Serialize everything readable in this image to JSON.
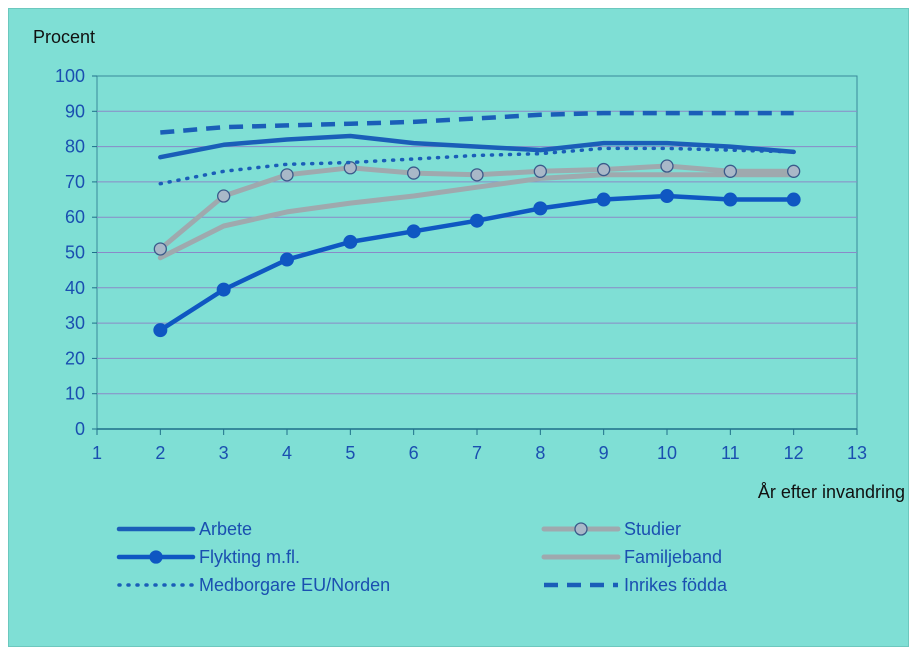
{
  "chart_data": {
    "type": "line",
    "ylabel": "Procent",
    "xlabel": "År efter invandring",
    "xlim": [
      1,
      13
    ],
    "ylim": [
      0,
      100
    ],
    "x_ticks": [
      "1",
      "2",
      "3",
      "4",
      "5",
      "6",
      "7",
      "8",
      "9",
      "10",
      "11",
      "12",
      "13"
    ],
    "y_ticks": [
      "0",
      "10",
      "20",
      "30",
      "40",
      "50",
      "60",
      "70",
      "80",
      "90",
      "100"
    ],
    "grid": "horizontal",
    "legend_placement": "bottom",
    "x": [
      2,
      3,
      4,
      5,
      6,
      7,
      8,
      9,
      10,
      11,
      12
    ],
    "series": [
      {
        "name": "Arbete",
        "color": "#1a5eb8",
        "style": "solid",
        "values": [
          77,
          80.5,
          82,
          83,
          81,
          80,
          79,
          81,
          81,
          80,
          78.5
        ]
      },
      {
        "name": "Studier",
        "color": "#9fa9ae",
        "style": "solid-markers",
        "values": [
          51,
          66,
          72,
          74,
          72.5,
          72,
          73,
          73.5,
          74.5,
          73,
          73
        ]
      },
      {
        "name": "Flykting m.fl.",
        "color": "#0f57c2",
        "style": "solid-markers",
        "values": [
          28,
          39.5,
          48,
          53,
          56,
          59,
          62.5,
          65,
          66,
          65,
          65
        ]
      },
      {
        "name": "Familjeband",
        "color": "#9fa9ae",
        "style": "solid",
        "values": [
          48.5,
          57.5,
          61.5,
          64,
          66,
          68.5,
          71,
          72,
          72,
          72,
          72
        ]
      },
      {
        "name": "Medborgare EU/Norden",
        "color": "#1a5eb8",
        "style": "dotted",
        "values": [
          69.5,
          73,
          75,
          75.5,
          76.5,
          77.5,
          78,
          79.5,
          79.5,
          79,
          78.5
        ]
      },
      {
        "name": "Inrikes födda",
        "color": "#1a5eb8",
        "style": "dashed",
        "values": [
          84,
          85.5,
          86,
          86.5,
          87,
          88,
          89,
          89.5,
          89.5,
          89.5,
          89.5
        ]
      }
    ]
  }
}
